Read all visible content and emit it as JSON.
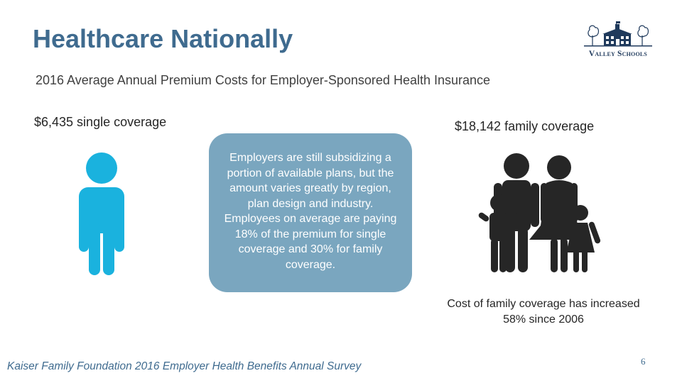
{
  "slide": {
    "title": "Healthcare Nationally",
    "subtitle": "2016 Average Annual Premium Costs for Employer-Sponsored Health Insurance",
    "single_coverage": "$6,435 single coverage",
    "family_coverage": "$18,142 family coverage",
    "callout_text": "Employers are still subsidizing a portion of available plans, but the amount varies greatly by region, plan design and industry. Employees on average are paying 18% of the premium for single coverage and 30% for family coverage.",
    "increase_note": "Cost of family coverage has increased 58% since 2006",
    "source": "Kaiser Family Foundation 2016 Employer Health Benefits Annual Survey",
    "page_number": "6"
  },
  "logo": {
    "text": "Valley Schools",
    "icon": "school-building-icon"
  },
  "icons": {
    "single": "person-icon",
    "family": "family-icon"
  },
  "colors": {
    "title": "#3f6b8f",
    "person_icon": "#1ab2de",
    "callout_background": "#7aa6bf",
    "family_icon": "#262626"
  }
}
